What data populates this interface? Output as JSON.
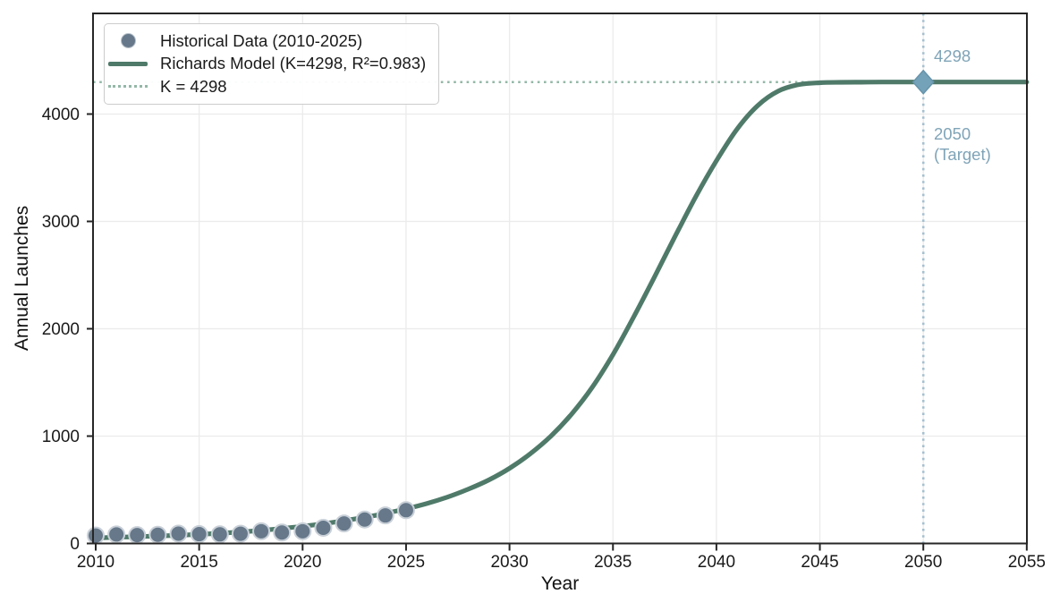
{
  "colors": {
    "model_line": "#4f7a6a",
    "marker_fill": "#66788a",
    "marker_edge": "#c9d0d8",
    "k_line": "#93b8a7",
    "target_line": "#a6c0d0",
    "target_marker_fill": "#74a2b8",
    "target_marker_edge": "#6694ab",
    "annotation_text": "#7fa4b8",
    "grid": "#ebebeb",
    "spine": "#262626",
    "text": "#1a1a1a"
  },
  "axis": {
    "xlabel": "Year",
    "ylabel": "Annual Launches"
  },
  "legend": {
    "items": [
      {
        "key": "circle-marker",
        "label": "Historical Data (2010-2025)"
      },
      {
        "key": "solid-line",
        "label": "Richards Model (K=4298, R²=0.983)"
      },
      {
        "key": "dotted-line",
        "label": "K = 4298"
      }
    ]
  },
  "annotations": {
    "capacity_value": "4298",
    "target_year": "2050",
    "target_note": "(Target)"
  },
  "chart_data": {
    "type": "line",
    "title": "",
    "xlabel": "Year",
    "ylabel": "Annual Launches",
    "xlim": [
      2009.87,
      2055.03
    ],
    "ylim": [
      0,
      4940
    ],
    "x_ticks": [
      2010,
      2015,
      2020,
      2025,
      2030,
      2035,
      2040,
      2045,
      2050,
      2055
    ],
    "y_ticks": [
      0,
      1000,
      2000,
      3000,
      4000
    ],
    "grid": true,
    "legend_position": "upper left",
    "series": [
      {
        "name": "Historical Data (2010-2025)",
        "type": "scatter",
        "x": [
          2010,
          2011,
          2012,
          2013,
          2014,
          2015,
          2016,
          2017,
          2018,
          2019,
          2020,
          2021,
          2022,
          2023,
          2024,
          2025
        ],
        "y": [
          74,
          84,
          78,
          81,
          92,
          87,
          85,
          91,
          114,
          102,
          114,
          146,
          186,
          223,
          261,
          310
        ]
      },
      {
        "name": "Richards Model (K=4298, R²=0.983)",
        "type": "line",
        "x": [
          2009.9,
          2011,
          2012,
          2013,
          2014,
          2015,
          2016,
          2017,
          2018,
          2019,
          2020,
          2021,
          2022,
          2023,
          2024,
          2025,
          2026,
          2027,
          2028,
          2029,
          2030,
          2031,
          2032,
          2033,
          2034,
          2035,
          2036,
          2037,
          2038,
          2039,
          2040,
          2041,
          2042,
          2043,
          2044,
          2045,
          2046,
          2047,
          2048,
          2050,
          2052,
          2055
        ],
        "y": [
          50,
          58,
          63,
          69,
          76,
          85,
          95,
          107,
          122,
          140,
          160,
          184,
          212,
          244,
          280,
          322,
          372,
          432,
          505,
          592,
          700,
          835,
          1000,
          1205,
          1455,
          1760,
          2110,
          2480,
          2860,
          3230,
          3565,
          3860,
          4080,
          4215,
          4275,
          4292,
          4296,
          4297,
          4298,
          4298,
          4298,
          4298
        ]
      },
      {
        "name": "K = 4298",
        "type": "hline",
        "y": 4298
      },
      {
        "name": "2050 Target",
        "type": "vline",
        "x": 2050
      },
      {
        "name": "Target point",
        "type": "marker",
        "shape": "diamond",
        "x": 2050,
        "y": 4298
      }
    ]
  }
}
